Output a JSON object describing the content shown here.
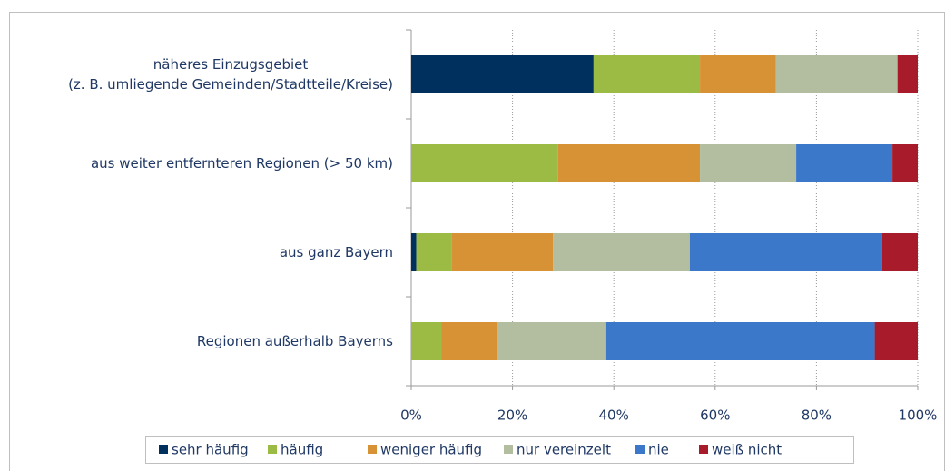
{
  "chart_data": {
    "type": "stacked_barh",
    "categories": [
      "näheres Einzugsgebiet\n(z. B. umliegende Gemeinden/Stadtteile/Kreise)",
      "aus weiter entfernteren Regionen (> 50 km)",
      "aus ganz Bayern",
      "Regionen außerhalb Bayerns"
    ],
    "series": [
      {
        "name": "sehr häufig",
        "color": "#00305e",
        "values": [
          36,
          0,
          1,
          0
        ]
      },
      {
        "name": "häufig",
        "color": "#9bbb45",
        "values": [
          21,
          29,
          7,
          6
        ]
      },
      {
        "name": "weniger häufig",
        "color": "#d69234",
        "values": [
          15,
          28,
          20,
          11
        ]
      },
      {
        "name": "nur vereinzelt",
        "color": "#b3bd9f",
        "values": [
          24,
          19,
          27,
          21.5
        ]
      },
      {
        "name": "nie",
        "color": "#3b78c9",
        "values": [
          0,
          19,
          38,
          53
        ]
      },
      {
        "name": "weiß nicht",
        "color": "#a71b2a",
        "values": [
          4,
          5,
          7,
          8.5
        ]
      }
    ],
    "xlim": [
      0,
      100
    ],
    "xticks": [
      {
        "value": 0,
        "label": "0%"
      },
      {
        "value": 20,
        "label": "20%"
      },
      {
        "value": 40,
        "label": "40%"
      },
      {
        "value": 60,
        "label": "60%"
      },
      {
        "value": 80,
        "label": "80%"
      },
      {
        "value": 100,
        "label": "100%"
      }
    ],
    "grid": true,
    "legend": "bottom"
  }
}
